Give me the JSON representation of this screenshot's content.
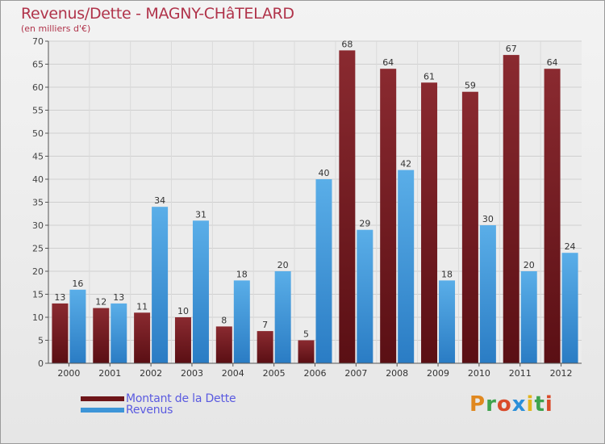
{
  "title": "Revenus/Dette - MAGNY-CHâTELARD",
  "subtitle": "(en milliers d'€)",
  "logo": {
    "letters": [
      "P",
      "r",
      "o",
      "x",
      "i",
      "t",
      "i"
    ],
    "colors": [
      "#e0881f",
      "#3fa34d",
      "#d94a2a",
      "#2a8fd9",
      "#e2b51d",
      "#3fa34d",
      "#d94a2a"
    ]
  },
  "legend": {
    "dette_label": "Montant de la Dette",
    "revenus_label": "Revenus",
    "dette_color": "#7a1d23",
    "revenus_color": "#3d95d8"
  },
  "chart_data": {
    "type": "bar",
    "title": "Revenus/Dette - MAGNY-CHâTELARD",
    "subtitle": "(en milliers d'€)",
    "categories": [
      "2000",
      "2001",
      "2002",
      "2003",
      "2004",
      "2005",
      "2006",
      "2007",
      "2008",
      "2009",
      "2010",
      "2011",
      "2012"
    ],
    "series": [
      {
        "name": "Montant de la Dette",
        "color": "#7a1d23",
        "values": [
          13,
          12,
          11,
          10,
          8,
          7,
          5,
          68,
          64,
          61,
          59,
          67,
          64
        ]
      },
      {
        "name": "Revenus",
        "color": "#3d95d8",
        "values": [
          16,
          13,
          34,
          31,
          18,
          20,
          40,
          29,
          42,
          18,
          30,
          20,
          24
        ]
      }
    ],
    "ylim": [
      0,
      70
    ],
    "yticks": [
      0,
      5,
      10,
      15,
      20,
      25,
      30,
      35,
      40,
      45,
      50,
      55,
      60,
      65,
      70
    ],
    "grid": true,
    "legend_position": "bottom-left"
  }
}
